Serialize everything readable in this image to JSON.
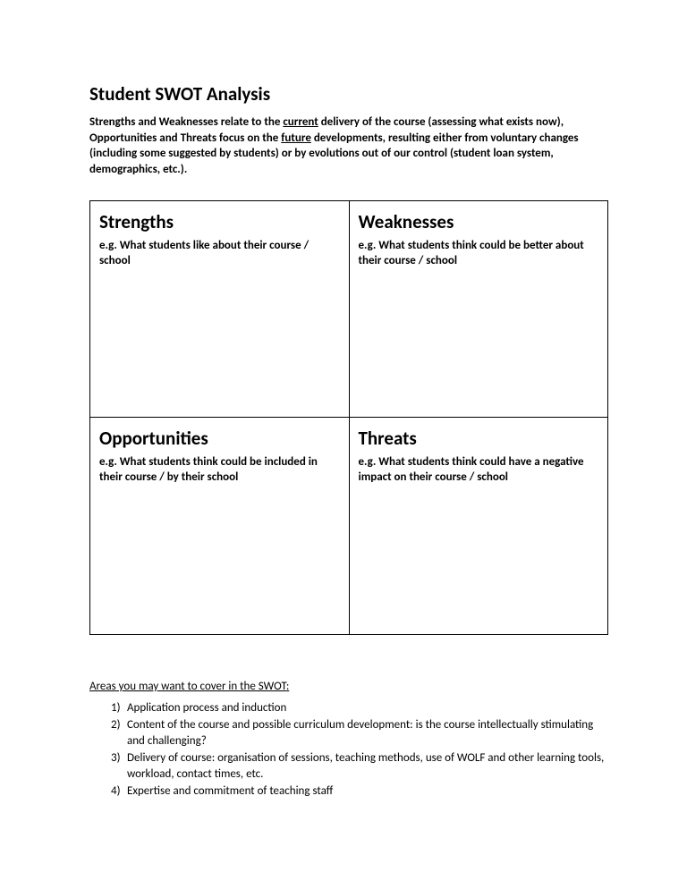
{
  "title": "Student SWOT Analysis",
  "intro": {
    "part1": "Strengths and Weaknesses relate to the ",
    "underline1": "current",
    "part2": " delivery of the course (assessing what exists now), Opportunities and Threats focus on the ",
    "underline2": "future",
    "part3": " developments, resulting either from voluntary changes (including some suggested by students) or by evolutions out of our control (student loan system, demographics, etc.)."
  },
  "swot": {
    "strengths": {
      "title": "Strengths",
      "desc": "e.g. What students like about their course / school"
    },
    "weaknesses": {
      "title": "Weaknesses",
      "desc": "e.g. What students think could be better about their course / school"
    },
    "opportunities": {
      "title": "Opportunities",
      "desc": "e.g. What students think could be included in their course / by their school"
    },
    "threats": {
      "title": "Threats",
      "desc": "e.g. What students think could have a negative impact on their course / school"
    }
  },
  "areas": {
    "title": "Areas you may want to cover in the SWOT:",
    "items": [
      "Application process and induction",
      "Content of the course and possible curriculum development: is the course intellectually stimulating and challenging?",
      "Delivery of course: organisation of sessions, teaching methods, use of WOLF and other learning tools, workload, contact times, etc.",
      "Expertise and commitment of teaching staff"
    ]
  }
}
